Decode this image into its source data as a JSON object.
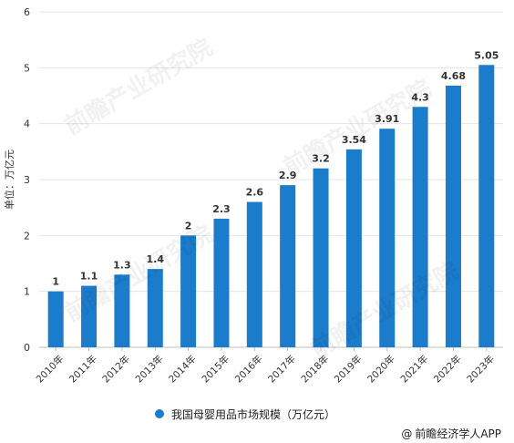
{
  "chart_data": {
    "type": "bar",
    "categories": [
      "2010年",
      "2011年",
      "2012年",
      "2013年",
      "2014年",
      "2015年",
      "2016年",
      "2017年",
      "2018年",
      "2019年",
      "2020年",
      "2021年",
      "2022年",
      "2023年"
    ],
    "series": [
      {
        "name": "我国母婴用品市场规模（万亿元）",
        "values": [
          1,
          1.1,
          1.3,
          1.4,
          2,
          2.3,
          2.6,
          2.9,
          3.2,
          3.54,
          3.91,
          4.3,
          4.68,
          5.05
        ]
      }
    ],
    "data_labels": [
      "1",
      "1.1",
      "1.3",
      "1.4",
      "2",
      "2.3",
      "2.6",
      "2.9",
      "3.2",
      "3.54",
      "3.91",
      "4.3",
      "4.68",
      "5.05"
    ],
    "title": "",
    "xlabel": "",
    "ylabel": "单位：万亿元",
    "ylim": [
      0,
      6
    ],
    "yticks": [
      "0",
      "1",
      "2",
      "3",
      "4",
      "5",
      "6"
    ],
    "grid": true,
    "legend_position": "bottom",
    "bar_color": "#1b7ccc"
  },
  "source_text": "前瞻经济学人APP",
  "source_icon": "at-sign-icon",
  "watermark_text": "前瞻产业研究院"
}
